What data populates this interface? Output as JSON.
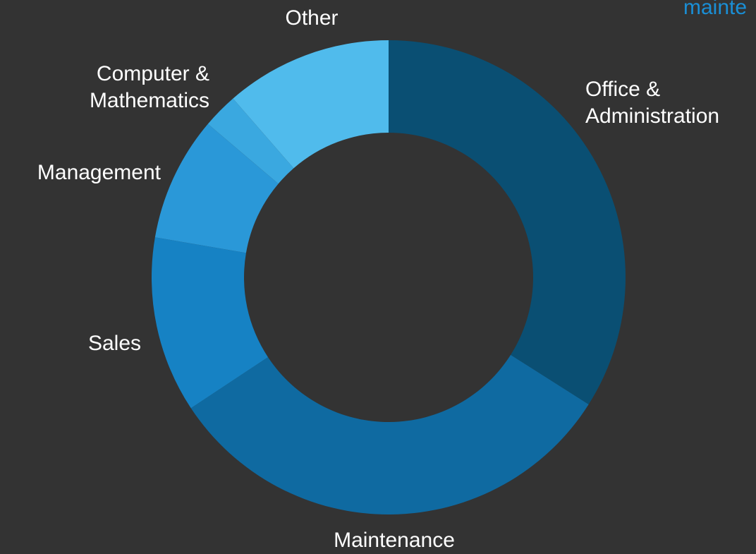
{
  "chart_data": {
    "type": "donut",
    "annotation": "mainte",
    "categories": [
      "Office & Administration",
      "Maintenance",
      "Sales",
      "Management",
      "Computer & Mathematics",
      "Other"
    ],
    "values": [
      34,
      31.7,
      12,
      8.5,
      2.4,
      11.4
    ],
    "colors": [
      "#0a4f73",
      "#0f6aa1",
      "#1682c4",
      "#2a98d8",
      "#3aa8e0",
      "#50bbec"
    ]
  }
}
